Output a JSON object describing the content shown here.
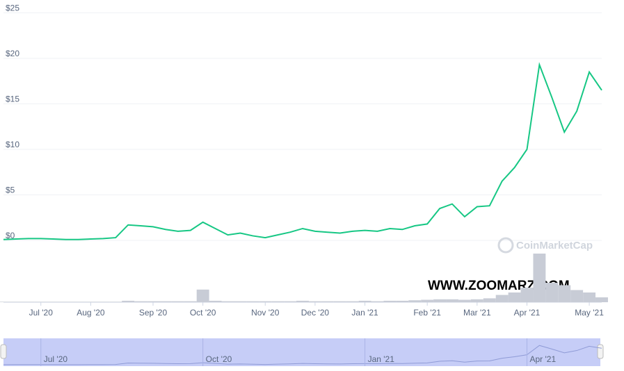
{
  "chart_data": {
    "type": "line",
    "categories": [
      null,
      null,
      null,
      "Jul '20",
      null,
      null,
      null,
      "Aug '20",
      null,
      null,
      null,
      null,
      "Sep '20",
      null,
      null,
      null,
      "Oct '20",
      null,
      null,
      null,
      null,
      "Nov '20",
      null,
      null,
      null,
      "Dec '20",
      null,
      null,
      null,
      "Jan '21",
      null,
      null,
      null,
      null,
      "Feb '21",
      null,
      null,
      null,
      "Mar '21",
      null,
      null,
      null,
      "Apr '21",
      null,
      null,
      null,
      null,
      "May '21",
      null
    ],
    "series": [
      {
        "name": "Price",
        "color": "#16c784",
        "values": [
          0.1,
          0.15,
          0.2,
          0.2,
          0.15,
          0.1,
          0.1,
          0.15,
          0.2,
          0.3,
          1.7,
          1.6,
          1.5,
          1.2,
          1.0,
          1.1,
          2.0,
          1.3,
          0.6,
          0.8,
          0.5,
          0.3,
          0.6,
          0.9,
          1.3,
          1.0,
          0.9,
          0.8,
          1.0,
          1.1,
          1.0,
          1.3,
          1.2,
          1.6,
          1.8,
          3.5,
          4.0,
          2.6,
          3.7,
          3.8,
          6.5,
          8.0,
          10.0,
          19.3,
          15.7,
          11.9,
          14.2,
          18.5,
          16.5
        ]
      },
      {
        "name": "Volume",
        "color": "#c8ccd6",
        "axis": "y2",
        "values": [
          1,
          1,
          1,
          1,
          1,
          1,
          1,
          1,
          1,
          1,
          3,
          2,
          2,
          2,
          2,
          2,
          26,
          3,
          2,
          2,
          2,
          2,
          2,
          2,
          3,
          2,
          2,
          2,
          2,
          3,
          2,
          3,
          3,
          4,
          5,
          6,
          6,
          5,
          6,
          8,
          15,
          20,
          30,
          100,
          40,
          35,
          25,
          20,
          10
        ]
      }
    ],
    "ylim": [
      0,
      25
    ],
    "yticks": [
      {
        "value": 0,
        "label": "$0"
      },
      {
        "value": 5,
        "label": "$5"
      },
      {
        "value": 10,
        "label": "$10"
      },
      {
        "value": 15,
        "label": "$15"
      },
      {
        "value": 20,
        "label": "$20"
      },
      {
        "value": 25,
        "label": "$25"
      }
    ],
    "y2lim": [
      0,
      100
    ],
    "grid": true,
    "navigator_labels": [
      {
        "index": 3,
        "label": "Jul '20"
      },
      {
        "index": 16,
        "label": "Oct '20"
      },
      {
        "index": 29,
        "label": "Jan '21"
      },
      {
        "index": 42,
        "label": "Apr '21"
      }
    ],
    "watermark": "CoinMarketCap",
    "site_text": "WWW.ZOOMARZ.COM"
  }
}
